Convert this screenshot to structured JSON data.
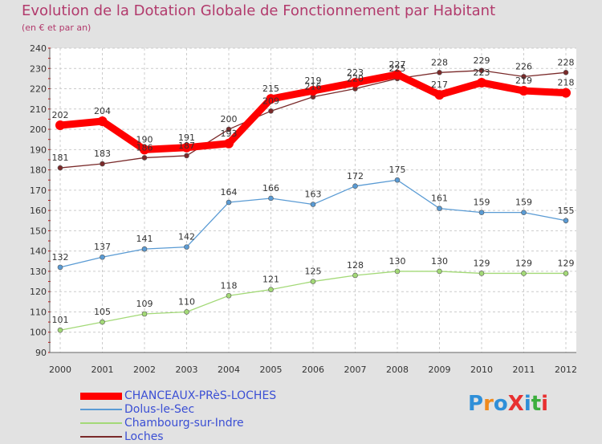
{
  "header": {
    "title": "Evolution de la Dotation Globale de Fonctionnement par Habitant",
    "subtitle": "(en € et par an)"
  },
  "logo": {
    "text": "ProXiti",
    "colors": [
      "#2f8fd8",
      "#f08a1c",
      "#2f8fd8",
      "#e83030",
      "#2f8fd8",
      "#3cae3c",
      "#e83030"
    ]
  },
  "chart_data": {
    "type": "line",
    "categories": [
      "2000",
      "2001",
      "2002",
      "2003",
      "2004",
      "2005",
      "2006",
      "2007",
      "2008",
      "2009",
      "2010",
      "2011",
      "2012"
    ],
    "ylim": [
      90,
      240
    ],
    "yticks": [
      90,
      100,
      110,
      120,
      130,
      140,
      150,
      160,
      170,
      180,
      190,
      200,
      210,
      220,
      230,
      240
    ],
    "grid": true,
    "legend_position": "bottom-left",
    "series": [
      {
        "name": "CHANCEAUX-PRèS-LOCHES",
        "color": "#ff0000",
        "values": [
          202,
          204,
          190,
          191,
          193,
          215,
          219,
          223,
          227,
          217,
          223,
          219,
          218
        ]
      },
      {
        "name": "Dolus-le-Sec",
        "color": "#5a9bd4",
        "values": [
          132,
          137,
          141,
          142,
          164,
          166,
          163,
          172,
          175,
          161,
          159,
          159,
          155
        ]
      },
      {
        "name": "Chambourg-sur-Indre",
        "color": "#a3d977",
        "values": [
          101,
          105,
          109,
          110,
          118,
          121,
          125,
          128,
          130,
          130,
          129,
          129,
          129
        ]
      },
      {
        "name": "Loches",
        "color": "#7a2a2a",
        "values": [
          181,
          183,
          186,
          187,
          200,
          209,
          216,
          220,
          225,
          228,
          229,
          226,
          228
        ]
      }
    ]
  }
}
